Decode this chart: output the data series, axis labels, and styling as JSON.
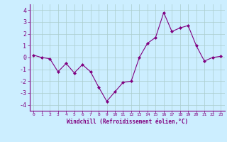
{
  "x": [
    0,
    1,
    2,
    3,
    4,
    5,
    6,
    7,
    8,
    9,
    10,
    11,
    12,
    13,
    14,
    15,
    16,
    17,
    18,
    19,
    20,
    21,
    22,
    23
  ],
  "y": [
    0.2,
    0.0,
    -0.1,
    -1.2,
    -0.5,
    -1.3,
    -0.6,
    -1.2,
    -2.5,
    -3.7,
    -2.9,
    -2.1,
    -2.0,
    0.0,
    1.2,
    1.7,
    3.8,
    2.2,
    2.5,
    2.7,
    1.0,
    -0.3,
    0.0,
    0.1
  ],
  "line_color": "#800080",
  "marker": "D",
  "marker_size": 2.0,
  "bg_color": "#cceeff",
  "grid_color": "#aacccc",
  "xlabel": "Windchill (Refroidissement éolien,°C)",
  "xlabel_color": "#800080",
  "tick_color": "#800080",
  "ylim": [
    -4.5,
    4.5
  ],
  "xlim": [
    -0.5,
    23.5
  ],
  "yticks": [
    -4,
    -3,
    -2,
    -1,
    0,
    1,
    2,
    3,
    4
  ],
  "xticks": [
    0,
    1,
    2,
    3,
    4,
    5,
    6,
    7,
    8,
    9,
    10,
    11,
    12,
    13,
    14,
    15,
    16,
    17,
    18,
    19,
    20,
    21,
    22,
    23
  ]
}
